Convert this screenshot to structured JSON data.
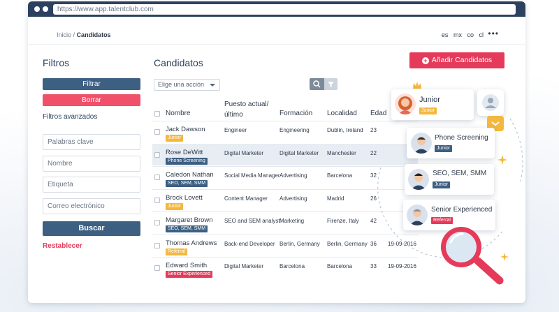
{
  "browser": {
    "url": "https://www.app.talentclub.com"
  },
  "breadcrumb": {
    "home": "Inicio",
    "separator": "/",
    "current": "Candidatos"
  },
  "languages": [
    "es",
    "mx",
    "co",
    "cl"
  ],
  "more_menu": "•••",
  "sidebar": {
    "title": "Filtros",
    "filter_button": "Filtrar",
    "clear_button": "Borrar",
    "advanced_title": "Filtros avanzados",
    "fields": [
      {
        "placeholder": "Palabras clave"
      },
      {
        "placeholder": "Nombre"
      },
      {
        "placeholder": "Etiqueta"
      },
      {
        "placeholder": "Correo electrónico"
      }
    ],
    "search_button": "Buscar",
    "reset_link": "Restablecer"
  },
  "main": {
    "title": "Candidatos",
    "add_button": "Añadir Candidatos",
    "action_select": "Elige una acción",
    "columns": [
      "Nombre",
      "Puesto actual/\núltimo",
      "Formación",
      "Localidad",
      "Edad"
    ],
    "rows": [
      {
        "name": "Jack Dawson",
        "tag": "Junior",
        "tag_color": "#f5b83d",
        "position": "Engineer",
        "education": "Engineering",
        "location": "Dublin, Ireland",
        "age": "23",
        "date": ""
      },
      {
        "name": "Rose DeWitt",
        "tag": "Phone Screening",
        "tag_color": "#3d5f82",
        "position": "Digital Marketer",
        "education": "Digital Marketer",
        "location": "Manchester",
        "age": "22",
        "date": ""
      },
      {
        "name": "Caledon Nathan",
        "tag": "SEO, SEM, SMM",
        "tag_color": "#3d5f82",
        "position": "Social Media Manager",
        "education": "Advertising",
        "location": "Barcelona",
        "age": "32",
        "date": ""
      },
      {
        "name": "Brock Lovett",
        "tag": "Junior",
        "tag_color": "#f5b83d",
        "position": "Content Manager",
        "education": "Advertising",
        "location": "Madrid",
        "age": "26",
        "date": ""
      },
      {
        "name": "Margaret Brown",
        "tag": "SEO, SEM, SMM",
        "tag_color": "#3d5f82",
        "position": "SEO and SEM analyst",
        "education": "Marketing",
        "location": "Firenze, Italy",
        "age": "42",
        "date": ""
      },
      {
        "name": "Thomas Andrews",
        "tag": "Referral",
        "tag_color": "#f5b83d",
        "position": "Back-end Developer",
        "education": "Berlin, Germany",
        "location": "Berlin, Germany",
        "age": "36",
        "date": "19-09-2016"
      },
      {
        "name": "Edward Smith",
        "tag": "Senior Experienced",
        "tag_color": "#e63a5a",
        "position": "Digital Marketer",
        "education": "Barcelona",
        "location": "Barcelona",
        "age": "33",
        "date": "19-09-2016"
      }
    ]
  },
  "floating_cards": [
    {
      "title": "Junior",
      "tag": "Junior",
      "tag_color": "#f5b83d"
    },
    {
      "title": "Phone Screening",
      "tag": "Junior",
      "tag_color": "#3d5f82"
    },
    {
      "title": "SEO, SEM, SMM",
      "tag": "Junior",
      "tag_color": "#3d5f82"
    },
    {
      "title": "Senior Experienced",
      "tag": "Referral",
      "tag_color": "#e63a5a"
    }
  ],
  "colors": {
    "navy": "#2c4160",
    "brand_red": "#e63a5a",
    "slate_button": "#3d5f82",
    "yellow": "#f5b83d"
  }
}
